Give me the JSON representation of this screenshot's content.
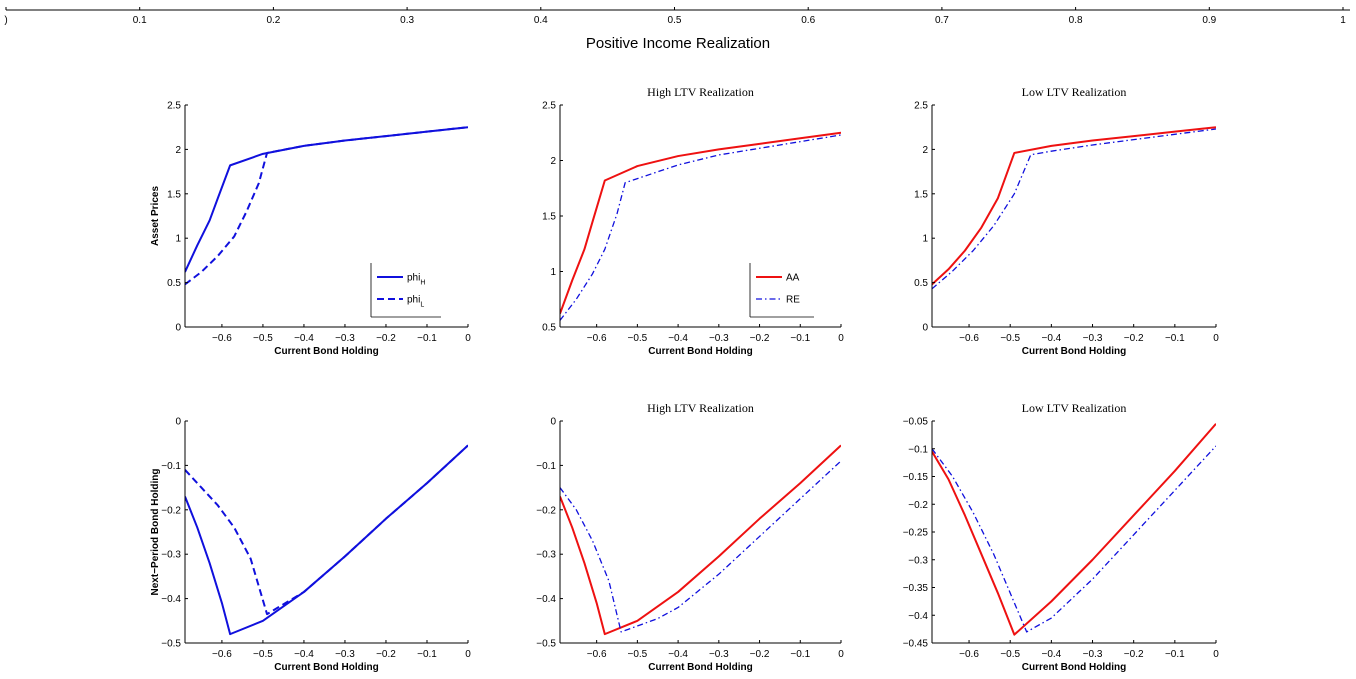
{
  "figure": {
    "title": "Positive Income Realization",
    "top_axis_ticks": [
      ")",
      "0.1",
      "0.2",
      "0.3",
      "0.4",
      "0.5",
      "0.6",
      "0.7",
      "0.8",
      "0.9",
      "1"
    ]
  },
  "colors": {
    "red": "#ee1111",
    "blue": "#1010dd",
    "axis": "#000000"
  },
  "chart_data": [
    {
      "type": "line",
      "title": "",
      "xlabel": "Current Bond Holding",
      "ylabel": "Asset Prices",
      "xlim": [
        -0.69,
        0
      ],
      "ylim": [
        0,
        2.5
      ],
      "xticks": [
        -0.6,
        -0.5,
        -0.4,
        -0.3,
        -0.2,
        -0.1,
        0
      ],
      "yticks": [
        0,
        0.5,
        1,
        1.5,
        2,
        2.5
      ],
      "legend": "bottom-right",
      "series": [
        {
          "name": "phi_H",
          "label_main": "phi",
          "label_sub": "H",
          "color": "blue",
          "style": "solid",
          "points": [
            [
              -0.69,
              0.62
            ],
            [
              -0.66,
              0.92
            ],
            [
              -0.63,
              1.2
            ],
            [
              -0.61,
              1.45
            ],
            [
              -0.58,
              1.82
            ],
            [
              -0.5,
              1.95
            ],
            [
              -0.4,
              2.04
            ],
            [
              -0.3,
              2.1
            ],
            [
              -0.2,
              2.15
            ],
            [
              -0.1,
              2.2
            ],
            [
              0,
              2.25
            ]
          ]
        },
        {
          "name": "phi_L",
          "label_main": "phi",
          "label_sub": "L",
          "color": "blue",
          "style": "dashed",
          "points": [
            [
              -0.69,
              0.48
            ],
            [
              -0.65,
              0.62
            ],
            [
              -0.61,
              0.8
            ],
            [
              -0.57,
              1.02
            ],
            [
              -0.54,
              1.3
            ],
            [
              -0.51,
              1.62
            ],
            [
              -0.49,
              1.96
            ],
            [
              -0.4,
              2.04
            ],
            [
              -0.3,
              2.1
            ],
            [
              -0.2,
              2.15
            ],
            [
              -0.1,
              2.2
            ],
            [
              0,
              2.25
            ]
          ]
        }
      ]
    },
    {
      "type": "line",
      "title": "High LTV Realization",
      "xlabel": "Current Bond Holding",
      "ylabel": "",
      "xlim": [
        -0.69,
        0
      ],
      "ylim": [
        0.5,
        2.5
      ],
      "xticks": [
        -0.6,
        -0.5,
        -0.4,
        -0.3,
        -0.2,
        -0.1,
        0
      ],
      "yticks": [
        0.5,
        1,
        1.5,
        2,
        2.5
      ],
      "legend": "bottom-right",
      "series": [
        {
          "name": "AA",
          "label_main": "AA",
          "label_sub": "",
          "color": "red",
          "style": "solid",
          "points": [
            [
              -0.69,
              0.62
            ],
            [
              -0.66,
              0.92
            ],
            [
              -0.63,
              1.2
            ],
            [
              -0.61,
              1.45
            ],
            [
              -0.58,
              1.82
            ],
            [
              -0.5,
              1.95
            ],
            [
              -0.4,
              2.04
            ],
            [
              -0.3,
              2.1
            ],
            [
              -0.2,
              2.15
            ],
            [
              -0.1,
              2.2
            ],
            [
              0,
              2.25
            ]
          ]
        },
        {
          "name": "RE",
          "label_main": "RE",
          "label_sub": "",
          "color": "blue",
          "style": "dashdot",
          "points": [
            [
              -0.69,
              0.56
            ],
            [
              -0.65,
              0.75
            ],
            [
              -0.61,
              0.98
            ],
            [
              -0.58,
              1.2
            ],
            [
              -0.55,
              1.52
            ],
            [
              -0.53,
              1.8
            ],
            [
              -0.4,
              1.96
            ],
            [
              -0.3,
              2.05
            ],
            [
              -0.2,
              2.11
            ],
            [
              -0.1,
              2.17
            ],
            [
              0,
              2.23
            ]
          ]
        }
      ]
    },
    {
      "type": "line",
      "title": "Low LTV Realization",
      "xlabel": "Current Bond Holding",
      "ylabel": "",
      "xlim": [
        -0.69,
        0
      ],
      "ylim": [
        0,
        2.5
      ],
      "xticks": [
        -0.6,
        -0.5,
        -0.4,
        -0.3,
        -0.2,
        -0.1,
        0
      ],
      "yticks": [
        0,
        0.5,
        1,
        1.5,
        2,
        2.5
      ],
      "legend": "none",
      "series": [
        {
          "name": "AA",
          "label_main": "AA",
          "label_sub": "",
          "color": "red",
          "style": "solid",
          "points": [
            [
              -0.69,
              0.48
            ],
            [
              -0.65,
              0.65
            ],
            [
              -0.61,
              0.86
            ],
            [
              -0.57,
              1.12
            ],
            [
              -0.53,
              1.45
            ],
            [
              -0.49,
              1.96
            ],
            [
              -0.4,
              2.04
            ],
            [
              -0.3,
              2.1
            ],
            [
              -0.2,
              2.15
            ],
            [
              -0.1,
              2.2
            ],
            [
              0,
              2.25
            ]
          ]
        },
        {
          "name": "RE",
          "label_main": "RE",
          "label_sub": "",
          "color": "blue",
          "style": "dashdot",
          "points": [
            [
              -0.69,
              0.43
            ],
            [
              -0.64,
              0.63
            ],
            [
              -0.59,
              0.86
            ],
            [
              -0.54,
              1.14
            ],
            [
              -0.49,
              1.5
            ],
            [
              -0.45,
              1.94
            ],
            [
              -0.4,
              1.98
            ],
            [
              -0.3,
              2.05
            ],
            [
              -0.2,
              2.11
            ],
            [
              -0.1,
              2.17
            ],
            [
              0,
              2.23
            ]
          ]
        }
      ]
    },
    {
      "type": "line",
      "title": "",
      "xlabel": "Current Bond Holding",
      "ylabel": "Next−Period Bond Holding",
      "xlim": [
        -0.69,
        0
      ],
      "ylim": [
        -0.5,
        0
      ],
      "xticks": [
        -0.6,
        -0.5,
        -0.4,
        -0.3,
        -0.2,
        -0.1,
        0
      ],
      "yticks": [
        -0.5,
        -0.4,
        -0.3,
        -0.2,
        -0.1,
        0
      ],
      "legend": "none",
      "series": [
        {
          "name": "phi_H",
          "label_main": "phi",
          "label_sub": "H",
          "color": "blue",
          "style": "solid",
          "points": [
            [
              -0.69,
              -0.17
            ],
            [
              -0.66,
              -0.24
            ],
            [
              -0.63,
              -0.32
            ],
            [
              -0.6,
              -0.41
            ],
            [
              -0.58,
              -0.48
            ],
            [
              -0.5,
              -0.45
            ],
            [
              -0.4,
              -0.385
            ],
            [
              -0.3,
              -0.305
            ],
            [
              -0.2,
              -0.22
            ],
            [
              -0.1,
              -0.14
            ],
            [
              0,
              -0.055
            ]
          ]
        },
        {
          "name": "phi_L",
          "label_main": "phi",
          "label_sub": "L",
          "color": "blue",
          "style": "dashed",
          "points": [
            [
              -0.69,
              -0.11
            ],
            [
              -0.65,
              -0.15
            ],
            [
              -0.61,
              -0.19
            ],
            [
              -0.57,
              -0.24
            ],
            [
              -0.53,
              -0.31
            ],
            [
              -0.49,
              -0.435
            ],
            [
              -0.4,
              -0.385
            ],
            [
              -0.3,
              -0.305
            ],
            [
              -0.2,
              -0.22
            ],
            [
              -0.1,
              -0.14
            ],
            [
              0,
              -0.055
            ]
          ]
        }
      ]
    },
    {
      "type": "line",
      "title": "High LTV Realization",
      "xlabel": "Current Bond Holding",
      "ylabel": "",
      "xlim": [
        -0.69,
        0
      ],
      "ylim": [
        -0.5,
        0
      ],
      "xticks": [
        -0.6,
        -0.5,
        -0.4,
        -0.3,
        -0.2,
        -0.1,
        0
      ],
      "yticks": [
        -0.5,
        -0.4,
        -0.3,
        -0.2,
        -0.1,
        0
      ],
      "legend": "none",
      "series": [
        {
          "name": "AA",
          "label_main": "AA",
          "label_sub": "",
          "color": "red",
          "style": "solid",
          "points": [
            [
              -0.69,
              -0.17
            ],
            [
              -0.66,
              -0.24
            ],
            [
              -0.63,
              -0.32
            ],
            [
              -0.6,
              -0.41
            ],
            [
              -0.58,
              -0.48
            ],
            [
              -0.5,
              -0.45
            ],
            [
              -0.4,
              -0.385
            ],
            [
              -0.3,
              -0.305
            ],
            [
              -0.2,
              -0.22
            ],
            [
              -0.1,
              -0.14
            ],
            [
              0,
              -0.055
            ]
          ]
        },
        {
          "name": "RE",
          "label_main": "RE",
          "label_sub": "",
          "color": "blue",
          "style": "dashdot",
          "points": [
            [
              -0.69,
              -0.15
            ],
            [
              -0.65,
              -0.2
            ],
            [
              -0.61,
              -0.27
            ],
            [
              -0.57,
              -0.36
            ],
            [
              -0.54,
              -0.475
            ],
            [
              -0.45,
              -0.445
            ],
            [
              -0.4,
              -0.42
            ],
            [
              -0.3,
              -0.345
            ],
            [
              -0.2,
              -0.26
            ],
            [
              -0.1,
              -0.175
            ],
            [
              0,
              -0.09
            ]
          ]
        }
      ]
    },
    {
      "type": "line",
      "title": "Low LTV Realization",
      "xlabel": "Current Bond Holding",
      "ylabel": "",
      "xlim": [
        -0.69,
        0
      ],
      "ylim": [
        -0.45,
        -0.05
      ],
      "xticks": [
        -0.6,
        -0.5,
        -0.4,
        -0.3,
        -0.2,
        -0.1,
        0
      ],
      "yticks": [
        -0.45,
        -0.4,
        -0.35,
        -0.3,
        -0.25,
        -0.2,
        -0.15,
        -0.1,
        -0.05
      ],
      "legend": "none",
      "series": [
        {
          "name": "AA",
          "label_main": "AA",
          "label_sub": "",
          "color": "red",
          "style": "solid",
          "points": [
            [
              -0.69,
              -0.105
            ],
            [
              -0.65,
              -0.155
            ],
            [
              -0.61,
              -0.22
            ],
            [
              -0.57,
              -0.29
            ],
            [
              -0.53,
              -0.36
            ],
            [
              -0.49,
              -0.435
            ],
            [
              -0.4,
              -0.375
            ],
            [
              -0.3,
              -0.3
            ],
            [
              -0.2,
              -0.22
            ],
            [
              -0.1,
              -0.14
            ],
            [
              0,
              -0.055
            ]
          ]
        },
        {
          "name": "RE",
          "label_main": "RE",
          "label_sub": "",
          "color": "blue",
          "style": "dashdot",
          "points": [
            [
              -0.69,
              -0.1
            ],
            [
              -0.64,
              -0.15
            ],
            [
              -0.59,
              -0.215
            ],
            [
              -0.54,
              -0.29
            ],
            [
              -0.5,
              -0.36
            ],
            [
              -0.46,
              -0.43
            ],
            [
              -0.4,
              -0.405
            ],
            [
              -0.3,
              -0.335
            ],
            [
              -0.2,
              -0.255
            ],
            [
              -0.1,
              -0.175
            ],
            [
              0,
              -0.095
            ]
          ]
        }
      ]
    }
  ]
}
